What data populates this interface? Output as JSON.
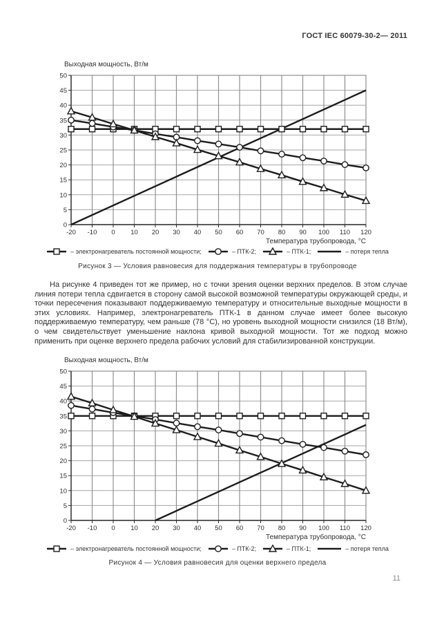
{
  "page": {
    "header": "ГОСТ IEC 60079-30-2— 2011",
    "number": "11"
  },
  "paragraph": "На рисунке 4 приведен тот же пример, но с точки зрения оценки верхних пределов. В этом случае линия потери тепла сдвигается в сторону самой высокой возможной температуры окружающей среды, и точки пересечения показывают поддерживаемую температуру и относительные выходные мощности в этих условиях. Например, электронагреватель ПТК-1 в данном случае имеет более высокую поддерживаемую температуру, чем раньше (78 °С), но уровень выходной мощности снизился (18 Вт/м), о чем свидетельствует уменьшение наклона кривой выходной мощности. Тот же подход можно применить при оценке верхнего предела рабочих условий для стабилизированной конструкции.",
  "chart_data": [
    {
      "type": "line",
      "caption": "Рисунок 3 — Условия равновесия для поддержания температуры в трубопроводе",
      "ylabel": "Выходная мощность, Вт/м",
      "xlabel": "Температура трубопровода, °С",
      "xlim": [
        -20,
        120
      ],
      "ylim": [
        0,
        50
      ],
      "grid": true,
      "legend_position": "bottom",
      "x_ticks": [
        -20,
        -10,
        0,
        10,
        20,
        30,
        40,
        50,
        60,
        70,
        80,
        90,
        100,
        110,
        120
      ],
      "y_ticks": [
        0,
        5,
        10,
        15,
        20,
        25,
        30,
        35,
        40,
        45,
        50
      ],
      "x": [
        -20,
        -10,
        0,
        10,
        20,
        30,
        40,
        50,
        60,
        70,
        80,
        90,
        100,
        110,
        120
      ],
      "series": [
        {
          "name": "электронагреватель постоянной мощности",
          "marker": "square",
          "values": [
            32,
            32,
            32,
            32,
            32,
            32,
            32,
            32,
            32,
            32,
            32,
            32,
            32,
            32,
            32
          ]
        },
        {
          "name": "ПТК-2",
          "marker": "circle",
          "values": [
            35,
            33.9,
            32.7,
            31.6,
            30.4,
            29.3,
            28.1,
            27,
            25.9,
            24.7,
            23.6,
            22.4,
            21.3,
            20.1,
            19
          ]
        },
        {
          "name": "ПТК-1",
          "marker": "triangle",
          "values": [
            38,
            35.9,
            33.7,
            31.6,
            29.4,
            27.3,
            25.1,
            23,
            20.9,
            18.7,
            16.6,
            14.4,
            12.3,
            10.1,
            8
          ]
        },
        {
          "name": "потеря тепла",
          "marker": "none",
          "x": [
            -20,
            120
          ],
          "values": [
            0,
            45
          ]
        }
      ],
      "legend": [
        {
          "marker": "square",
          "label": "– электронагреватель постоянной мощности;"
        },
        {
          "marker": "circle",
          "label": "– ПТК-2;"
        },
        {
          "marker": "triangle",
          "label": "– ПТК-1;"
        },
        {
          "marker": "line",
          "label": "– потеря тепла"
        }
      ]
    },
    {
      "type": "line",
      "caption": "Рисунок 4 — Условия равновесия  для оценки  верхнего предела",
      "ylabel": "Выходная мощность, Вт/м",
      "xlabel": "Температура трубопровода, °С",
      "xlim": [
        -20,
        120
      ],
      "ylim": [
        0,
        50
      ],
      "grid": true,
      "legend_position": "bottom",
      "x_ticks": [
        -20,
        -10,
        0,
        10,
        20,
        30,
        40,
        50,
        60,
        70,
        80,
        90,
        100,
        110,
        120
      ],
      "y_ticks": [
        0,
        5,
        10,
        15,
        20,
        25,
        30,
        35,
        40,
        45,
        50
      ],
      "x": [
        -20,
        -10,
        0,
        10,
        20,
        30,
        40,
        50,
        60,
        70,
        80,
        90,
        100,
        110,
        120
      ],
      "series": [
        {
          "name": "электронагреватель постоянной мощности",
          "marker": "square",
          "values": [
            35,
            35,
            35,
            35,
            35,
            35,
            35,
            35,
            35,
            35,
            35,
            35,
            35,
            35,
            35
          ]
        },
        {
          "name": "ПТК-2",
          "marker": "circle",
          "values": [
            38.5,
            37.3,
            36.1,
            35,
            33.8,
            32.6,
            31.4,
            30.3,
            29.1,
            27.9,
            26.7,
            25.5,
            24.4,
            23.2,
            22
          ]
        },
        {
          "name": "ПТК-1",
          "marker": "triangle",
          "values": [
            41.5,
            39.3,
            37,
            34.8,
            32.5,
            30.3,
            28,
            25.8,
            23.5,
            21.3,
            19,
            16.8,
            14.5,
            12.3,
            10
          ]
        },
        {
          "name": "потеря тепла",
          "marker": "none",
          "x": [
            20,
            120
          ],
          "values": [
            0,
            32
          ]
        }
      ],
      "legend": [
        {
          "marker": "square",
          "label": "– электронагреватель постоянной мощности;"
        },
        {
          "marker": "circle",
          "label": "– ПТК-2;"
        },
        {
          "marker": "triangle",
          "label": "– ПТК-1;"
        },
        {
          "marker": "line",
          "label": "– потеря тепла"
        }
      ]
    }
  ],
  "colors": {
    "series_line": "#1c1c1c",
    "grid_vertical": "#8f8f8f",
    "grid_horizontal": "#a5a5a5",
    "axis": "#2a2a2a",
    "text": "#2e2e2e",
    "page_number": "#8a8a8a"
  }
}
